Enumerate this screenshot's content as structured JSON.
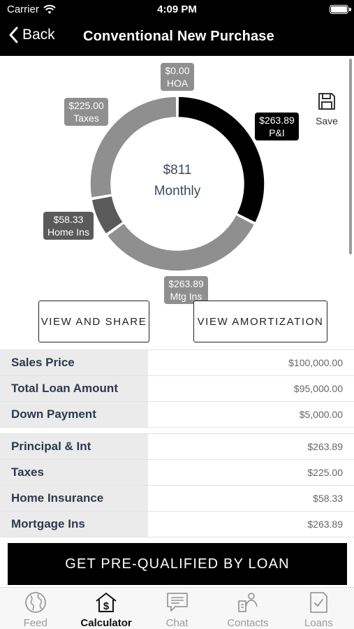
{
  "status_bar": {
    "carrier": "Carrier",
    "time": "4:09 PM"
  },
  "nav": {
    "back_label": "Back",
    "title": "Conventional New Purchase"
  },
  "chart": {
    "center_amount": "$811",
    "center_label": "Monthly",
    "callouts": {
      "hoa": {
        "amount": "$0.00",
        "label": "HOA"
      },
      "pi": {
        "amount": "$263.89",
        "label": "P&I"
      },
      "taxes": {
        "amount": "$225.00",
        "label": "Taxes"
      },
      "home_ins": {
        "amount": "$58.33",
        "label": "Home Ins"
      },
      "mtg_ins": {
        "amount": "$263.89",
        "label": "Mtg Ins"
      }
    }
  },
  "chart_data": {
    "type": "pie",
    "categories": [
      "P&I",
      "Mtg Ins",
      "Home Ins",
      "Taxes",
      "HOA"
    ],
    "values": [
      263.89,
      263.89,
      58.33,
      225.0,
      0.0
    ],
    "colors": [
      "#000000",
      "#8f8f8f",
      "#5a5a5a",
      "#8f8f8f",
      "#8f8f8f"
    ],
    "title": "$811 Monthly"
  },
  "save": {
    "label": "Save"
  },
  "buttons": {
    "view_share": "VIEW AND SHARE",
    "view_amortization": "VIEW AMORTIZATION"
  },
  "loan_table": [
    {
      "label": "Sales Price",
      "value": "$100,000.00"
    },
    {
      "label": "Total Loan Amount",
      "value": "$95,000.00"
    },
    {
      "label": "Down Payment",
      "value": "$5,000.00"
    }
  ],
  "payment_table": [
    {
      "label": "Principal & Int",
      "value": "$263.89"
    },
    {
      "label": "Taxes",
      "value": "$225.00"
    },
    {
      "label": "Home Insurance",
      "value": "$58.33"
    },
    {
      "label": "Mortgage Ins",
      "value": "$263.89"
    }
  ],
  "cta_label": "GET PRE-QUALIFIED BY LOAN",
  "tabs": [
    {
      "label": "Feed",
      "icon": "globe-icon",
      "active": false
    },
    {
      "label": "Calculator",
      "icon": "house-dollar-icon",
      "active": true
    },
    {
      "label": "Chat",
      "icon": "chat-icon",
      "active": false
    },
    {
      "label": "Contacts",
      "icon": "contacts-icon",
      "active": false
    },
    {
      "label": "Loans",
      "icon": "loan-document-icon",
      "active": false
    }
  ]
}
